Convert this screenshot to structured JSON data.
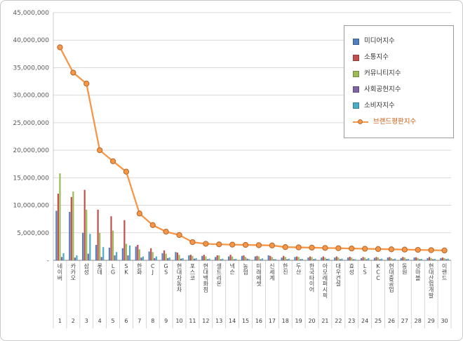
{
  "chart_data": {
    "type": "bar",
    "subtype": "grouped-bars-with-line",
    "title": "",
    "xlabel": "",
    "ylabel": "",
    "grid": true,
    "legend_position": "top-right-inside",
    "y_axis": {
      "min": 0,
      "max": 45000000,
      "tick_step": 5000000,
      "tick_labels": [
        "-",
        "5,000,000",
        "10,000,000",
        "15,000,000",
        "20,000,000",
        "25,000,000",
        "30,000,000",
        "35,000,000",
        "40,000,000",
        "45,000,000"
      ]
    },
    "ranks": [
      1,
      2,
      3,
      4,
      5,
      6,
      7,
      8,
      9,
      10,
      11,
      12,
      13,
      14,
      15,
      16,
      17,
      18,
      19,
      20,
      21,
      22,
      23,
      24,
      25,
      26,
      27,
      28,
      29,
      30
    ],
    "categories": [
      "네이버",
      "카카오",
      "삼성",
      "롯데",
      "LG",
      "SK",
      "한화",
      "CJ",
      "GS",
      "현대자동차",
      "포스코",
      "현대백화점",
      "셀트리온",
      "넥슨",
      "농협",
      "미래에셋",
      "신세계",
      "한진",
      "두산",
      "한국타이어",
      "아모레퍼시픽",
      "대우건설",
      "효성",
      "LS",
      "KCC",
      "현대중공업",
      "동원",
      "넷마블",
      "현대산업개발",
      "이랜드"
    ],
    "bar_series": [
      {
        "name": "미디어지수",
        "color": "#4F81BD",
        "values": [
          9000000,
          8800000,
          5000000,
          2800000,
          2300000,
          2200000,
          2500000,
          1600000,
          1300000,
          1500000,
          900000,
          800000,
          600000,
          700000,
          800000,
          700000,
          900000,
          500000,
          600000,
          500000,
          500000,
          500000,
          500000,
          400000,
          450000,
          500000,
          400000,
          500000,
          400000,
          400000
        ]
      },
      {
        "name": "소통지수",
        "color": "#C0504D",
        "values": [
          12100000,
          11500000,
          12800000,
          9200000,
          8000000,
          7300000,
          2800000,
          2200000,
          1800000,
          1400000,
          1000000,
          1000000,
          900000,
          1000000,
          900000,
          800000,
          800000,
          800000,
          700000,
          700000,
          700000,
          700000,
          650000,
          600000,
          600000,
          600000,
          600000,
          550000,
          600000,
          500000
        ]
      },
      {
        "name": "커뮤니티지수",
        "color": "#9BBB59",
        "values": [
          15800000,
          12500000,
          9200000,
          5000000,
          5400000,
          3000000,
          2000000,
          1500000,
          1200000,
          1000000,
          800000,
          700000,
          900000,
          700000,
          600000,
          700000,
          600000,
          600000,
          600000,
          600000,
          500000,
          500000,
          500000,
          500000,
          500000,
          400000,
          500000,
          400000,
          400000,
          400000
        ]
      },
      {
        "name": "사회공헌지수",
        "color": "#8064A2",
        "values": [
          600000,
          500000,
          1200000,
          600000,
          900000,
          900000,
          500000,
          400000,
          400000,
          300000,
          300000,
          200000,
          200000,
          200000,
          300000,
          200000,
          200000,
          200000,
          200000,
          200000,
          250000,
          200000,
          200000,
          200000,
          200000,
          200000,
          200000,
          200000,
          200000,
          200000
        ]
      },
      {
        "name": "소비자지수",
        "color": "#4BACC6",
        "values": [
          1300000,
          900000,
          4800000,
          2400000,
          1500000,
          2700000,
          700000,
          700000,
          500000,
          400000,
          400000,
          300000,
          300000,
          250000,
          200000,
          350000,
          200000,
          300000,
          250000,
          300000,
          300000,
          300000,
          200000,
          400000,
          300000,
          300000,
          250000,
          250000,
          250000,
          300000
        ]
      }
    ],
    "line_series": {
      "name": "브랜드평판지수",
      "color": "#F79646",
      "marker_border": "#B66D31",
      "label_color": "#C55A11",
      "values": [
        38700000,
        34100000,
        32100000,
        20000000,
        18000000,
        16100000,
        8500000,
        6400000,
        5200000,
        4600000,
        3300000,
        3000000,
        2900000,
        2850000,
        2800000,
        2750000,
        2700000,
        2400000,
        2350000,
        2300000,
        2250000,
        2200000,
        2150000,
        2100000,
        2050000,
        2000000,
        1950000,
        1900000,
        1850000,
        1800000
      ]
    }
  }
}
